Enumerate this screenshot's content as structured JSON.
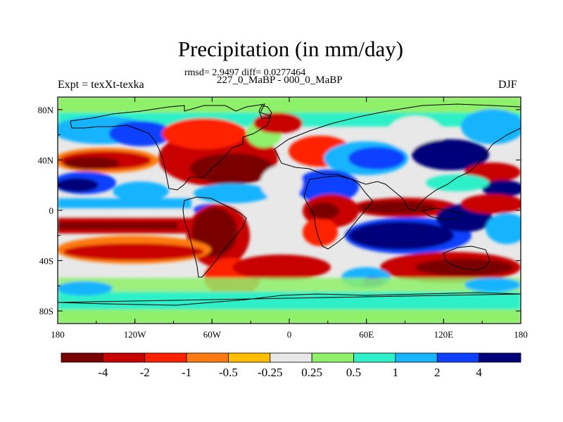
{
  "title": "Precipitation (in mm/day)",
  "stats": "rmsd= 2.9497 diff= 0.0277464",
  "period": "227_0_MaBP - 000_0_MaBP",
  "experiment": "Expt = texXt-texka",
  "season": "DJF",
  "chart_data": {
    "type": "heatmap",
    "xlim": [
      -180,
      180
    ],
    "ylim": [
      -90,
      90
    ],
    "x_ticks": [
      {
        "value": -180,
        "label": "180"
      },
      {
        "value": -120,
        "label": "120W"
      },
      {
        "value": -60,
        "label": "60W"
      },
      {
        "value": 0,
        "label": "0"
      },
      {
        "value": 60,
        "label": "60E"
      },
      {
        "value": 120,
        "label": "120E"
      },
      {
        "value": 180,
        "label": "180"
      }
    ],
    "y_ticks": [
      {
        "value": 80,
        "label": "80N"
      },
      {
        "value": 40,
        "label": "40N"
      },
      {
        "value": 0,
        "label": "0"
      },
      {
        "value": -40,
        "label": "40S"
      },
      {
        "value": -80,
        "label": "80S"
      }
    ],
    "colorbar": {
      "levels": [
        "-4",
        "-2",
        "-1",
        "-0.5",
        "-0.25",
        "0.25",
        "0.5",
        "1",
        "2",
        "4"
      ],
      "colors": [
        "#7a0000",
        "#c80000",
        "#ff2000",
        "#ff7a10",
        "#ffbf00",
        "#e8e8e8",
        "#8ff06a",
        "#2ff0c8",
        "#18b4ff",
        "#1040ff",
        "#00007a"
      ]
    }
  }
}
